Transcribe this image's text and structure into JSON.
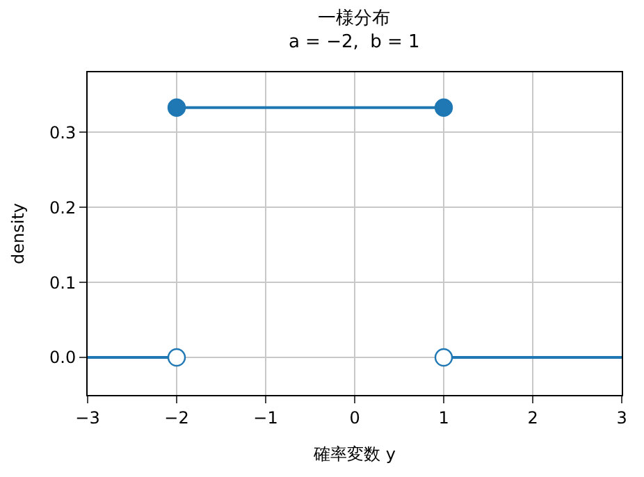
{
  "chart_data": {
    "type": "line",
    "title": "一様分布\na = −2,  b = 1",
    "xlabel": "確率変数 y",
    "ylabel": "density",
    "series": [
      {
        "color": "#1f77b4",
        "marker": "none",
        "x": [
          -3,
          -2
        ],
        "values": [
          0,
          0
        ]
      },
      {
        "color": "#1f77b4",
        "marker": "none",
        "x": [
          -2,
          1
        ],
        "values": [
          0.333,
          0.333
        ]
      },
      {
        "color": "#1f77b4",
        "marker": "none",
        "x": [
          1,
          3
        ],
        "values": [
          0,
          0
        ]
      },
      {
        "type": "scatter",
        "color": "#1f77b4",
        "x": [
          -2,
          1
        ],
        "values": [
          0.333,
          0.333
        ]
      },
      {
        "type": "scatter",
        "color": "#ffffff",
        "x": [
          -2,
          1
        ],
        "values": [
          0,
          0
        ]
      }
    ],
    "marker": "circle",
    "xlim": [
      -3,
      3
    ],
    "ylim": [
      -0.05,
      0.38
    ],
    "xticks": [
      {
        "value": -3,
        "label": "−3"
      },
      {
        "value": -2,
        "label": "−2"
      },
      {
        "value": -1,
        "label": "−1"
      },
      0,
      1,
      2,
      3
    ],
    "yticks": [
      {
        "value": 0,
        "label": "0.0"
      },
      {
        "value": 0.1,
        "label": "0.1"
      },
      {
        "value": 0.2,
        "label": "0.2"
      },
      {
        "value": 0.3,
        "label": "0.3"
      }
    ],
    "grid": true
  }
}
